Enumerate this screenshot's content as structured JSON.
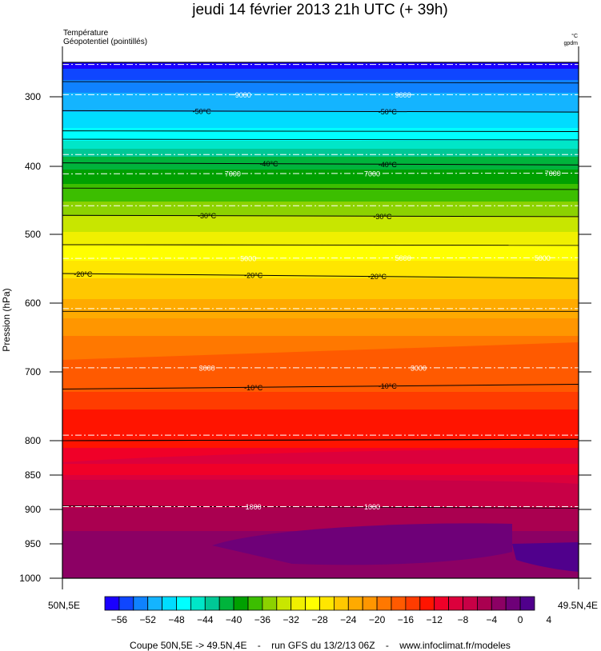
{
  "title": "jeudi 14 février 2013 21h UTC (+ 39h)",
  "legend_left": {
    "line1": "Température",
    "line2": "Géopotentiel (pointillés)"
  },
  "legend_right": {
    "line1": "°C",
    "line2": "gpdm"
  },
  "footer": "Coupe 50N,5E -> 49.5N,4E    -    run GFS du 13/2/13 06Z    -    www.infoclimat.fr/modeles",
  "chart_data": {
    "type": "heatmap",
    "title": "jeudi 14 février 2013 21h UTC (+ 39h)",
    "ylabel": "Pression (hPa)",
    "x_labels": [
      "50N,5E",
      "49.5N,4E"
    ],
    "y_axis": {
      "reversed": true,
      "ylim": [
        250,
        1000
      ],
      "ticks": [
        300,
        400,
        500,
        600,
        700,
        800,
        850,
        900,
        950,
        1000
      ]
    },
    "colorbar": {
      "ticks": [
        "−56",
        "−52",
        "−48",
        "−44",
        "−40",
        "−36",
        "−32",
        "−28",
        "−24",
        "−20",
        "−16",
        "−12",
        "−8",
        "−4",
        "0",
        "4"
      ],
      "colors": [
        "#1a00ff",
        "#0f46ff",
        "#0f82ff",
        "#14b4ff",
        "#00dcff",
        "#00ffff",
        "#00e6c8",
        "#00c896",
        "#00b43c",
        "#00a000",
        "#3cbe00",
        "#8cd200",
        "#c8e600",
        "#f0f000",
        "#ffff00",
        "#ffe600",
        "#ffc800",
        "#ffaa00",
        "#ff9600",
        "#ff7800",
        "#ff5a00",
        "#ff3c00",
        "#ff1400",
        "#f00028",
        "#dc003c",
        "#c80046",
        "#aa0050",
        "#8c0064",
        "#6e0078",
        "#50008c"
      ]
    },
    "temperature_contours": [
      {
        "label": "-50°C",
        "p": [
          320,
          322
        ],
        "label_x": [
          0.27,
          0.63
        ]
      },
      {
        "label": "-40°C",
        "p": [
          395,
          398
        ],
        "label_x": [
          0.4,
          0.63
        ]
      },
      {
        "label": "-30°C",
        "p": [
          472,
          474
        ],
        "label_x": [
          0.28,
          0.62
        ]
      },
      {
        "label": "-20°C",
        "p": [
          557,
          564
        ],
        "label_x": [
          0.04,
          0.37,
          0.61
        ]
      },
      {
        "label": "-10°C",
        "p": [
          725,
          718
        ],
        "label_x": [
          0.37,
          0.63
        ]
      },
      {
        "label": "",
        "p": [
          800,
          798
        ],
        "label_x": []
      }
    ],
    "geopotential_contours": [
      {
        "label": "9000",
        "p": [
          297,
          297
        ],
        "label_x": [
          0.35,
          0.66
        ]
      },
      {
        "label": "7000",
        "p": [
          411,
          410
        ],
        "label_x": [
          0.33,
          0.6,
          0.95
        ]
      },
      {
        "label": "5000",
        "p": [
          535,
          534
        ],
        "label_x": [
          0.36,
          0.66,
          0.93
        ]
      },
      {
        "label": "3000",
        "p": [
          694,
          694
        ],
        "label_x": [
          0.28,
          0.69
        ]
      },
      {
        "label": "1000",
        "p": [
          896,
          896
        ],
        "label_x": [
          0.37,
          0.6
        ]
      }
    ]
  }
}
